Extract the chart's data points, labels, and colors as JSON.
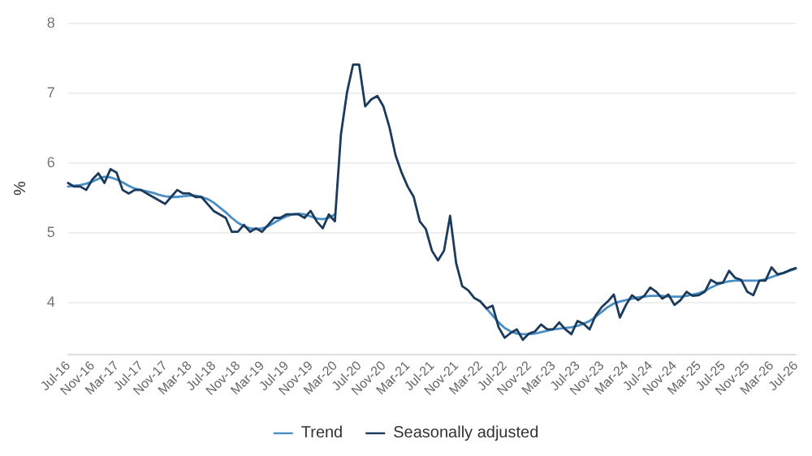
{
  "chart_data": {
    "type": "line",
    "ylabel": "%",
    "ylim": [
      3.25,
      8
    ],
    "yticks": [
      4,
      5,
      6,
      7,
      8
    ],
    "grid": "y",
    "legend": "bottom",
    "marker": "none",
    "line_style": "solid",
    "categories": [
      "Jul-16",
      null,
      null,
      null,
      "Nov-16",
      null,
      null,
      null,
      "Mar-17",
      null,
      null,
      null,
      "Jul-17",
      null,
      null,
      null,
      "Nov-17",
      null,
      null,
      null,
      "Mar-18",
      null,
      null,
      null,
      "Jul-18",
      null,
      null,
      null,
      "Nov-18",
      null,
      null,
      null,
      "Mar-19",
      null,
      null,
      null,
      "Jul-19",
      null,
      null,
      null,
      "Nov-19",
      null,
      null,
      null,
      "Mar-20",
      null,
      null,
      null,
      "Jul-20",
      null,
      null,
      null,
      "Nov-20",
      null,
      null,
      null,
      "Mar-21",
      null,
      null,
      null,
      "Jul-21",
      null,
      null,
      null,
      "Nov-21",
      null,
      null,
      null,
      "Mar-22",
      null,
      null,
      null,
      "Jul-22",
      null,
      null,
      null,
      "Nov-22",
      null,
      null,
      null,
      "Mar-23",
      null,
      null,
      null,
      "Jul-23",
      null,
      null,
      null,
      "Nov-23",
      null,
      null,
      null,
      "Mar-24",
      null,
      null,
      null,
      "Jul-24",
      null,
      null,
      null,
      "Nov-24",
      null,
      null,
      null,
      "Mar-25",
      null,
      null,
      null,
      "Jul-25",
      null,
      null,
      null,
      "Nov-25",
      null,
      null,
      null,
      "Mar-26",
      null,
      null,
      null,
      "Jul-26"
    ],
    "series": [
      {
        "name": "Trend",
        "color": "#4a8fc4",
        "values": [
          5.65,
          5.66,
          5.67,
          5.69,
          5.72,
          5.76,
          5.79,
          5.78,
          5.75,
          5.71,
          5.66,
          5.62,
          5.6,
          5.58,
          5.56,
          5.53,
          5.51,
          5.5,
          5.5,
          5.51,
          5.52,
          5.52,
          5.5,
          5.47,
          5.42,
          5.35,
          5.28,
          5.2,
          5.13,
          5.08,
          5.05,
          5.04,
          5.05,
          5.08,
          5.13,
          5.18,
          5.22,
          5.25,
          5.26,
          5.25,
          5.22,
          5.19,
          5.18,
          5.2,
          5.25,
          null,
          null,
          null,
          null,
          null,
          null,
          null,
          null,
          null,
          null,
          null,
          null,
          null,
          null,
          null,
          null,
          null,
          null,
          null,
          null,
          null,
          null,
          null,
          4.0,
          3.9,
          3.8,
          3.7,
          3.62,
          3.57,
          3.54,
          3.53,
          3.53,
          3.54,
          3.56,
          3.58,
          3.6,
          3.61,
          3.62,
          3.63,
          3.65,
          3.68,
          3.72,
          3.78,
          3.85,
          3.92,
          3.97,
          4.0,
          4.02,
          4.04,
          4.06,
          4.07,
          4.08,
          4.08,
          4.08,
          4.07,
          4.07,
          4.07,
          4.08,
          4.1,
          4.12,
          4.15,
          4.2,
          4.24,
          4.27,
          4.29,
          4.3,
          4.3,
          4.3,
          4.3,
          4.3,
          4.32,
          4.35,
          4.38,
          4.41,
          4.44,
          4.47
        ]
      },
      {
        "name": "Seasonally adjusted",
        "color": "#1b3a5c",
        "values": [
          5.7,
          5.65,
          5.65,
          5.6,
          5.75,
          5.84,
          5.7,
          5.9,
          5.85,
          5.6,
          5.55,
          5.6,
          5.6,
          5.55,
          5.5,
          5.45,
          5.4,
          5.5,
          5.6,
          5.55,
          5.55,
          5.5,
          5.5,
          5.4,
          5.3,
          5.25,
          5.2,
          5.0,
          5.0,
          5.1,
          5.0,
          5.05,
          5.0,
          5.1,
          5.2,
          5.2,
          5.25,
          5.25,
          5.25,
          5.2,
          5.3,
          5.15,
          5.05,
          5.25,
          5.15,
          6.4,
          7.0,
          7.4,
          7.4,
          6.8,
          6.9,
          6.95,
          6.8,
          6.5,
          6.1,
          5.85,
          5.65,
          5.5,
          5.15,
          5.04,
          4.73,
          4.59,
          4.73,
          5.23,
          4.55,
          4.22,
          4.16,
          4.05,
          4.0,
          3.9,
          3.94,
          3.63,
          3.48,
          3.55,
          3.6,
          3.45,
          3.54,
          3.57,
          3.67,
          3.6,
          3.6,
          3.7,
          3.6,
          3.53,
          3.72,
          3.68,
          3.6,
          3.8,
          3.92,
          4.0,
          4.1,
          3.77,
          3.95,
          4.09,
          4.02,
          4.08,
          4.2,
          4.14,
          4.04,
          4.1,
          3.95,
          4.02,
          4.14,
          4.08,
          4.09,
          4.14,
          4.31,
          4.26,
          4.27,
          4.44,
          4.34,
          4.31,
          4.14,
          4.09,
          4.3,
          4.3,
          4.49,
          4.39,
          4.41,
          4.45,
          4.48
        ]
      }
    ]
  }
}
